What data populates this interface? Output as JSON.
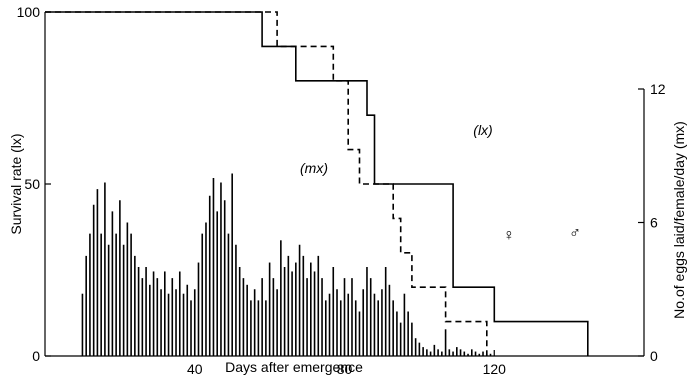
{
  "chart_data": {
    "type": "bar+line",
    "title": "",
    "xlabel": "Days after emergence",
    "ylabel_left": "Survival rate (lx)",
    "ylabel_right": "No.of eggs laid/female/day (mx)",
    "xlim": [
      0,
      160
    ],
    "xticks": [
      40,
      80,
      120
    ],
    "ylim_left": [
      0,
      100
    ],
    "yticks_left": [
      0,
      50,
      100
    ],
    "ylim_right": [
      0,
      12
    ],
    "yticks_right": [
      0,
      6,
      12
    ],
    "grid": false,
    "annotations": [
      "(mx)",
      "(lx)",
      "♀",
      "♂"
    ],
    "lines": [
      {
        "sex": "male",
        "style": "solid",
        "points": [
          [
            0,
            100
          ],
          [
            58,
            100
          ],
          [
            58,
            90
          ],
          [
            67,
            90
          ],
          [
            67,
            80
          ],
          [
            86,
            80
          ],
          [
            86,
            70
          ],
          [
            88,
            70
          ],
          [
            88,
            50
          ],
          [
            109,
            50
          ],
          [
            109,
            20
          ],
          [
            120,
            20
          ],
          [
            120,
            10
          ],
          [
            145,
            10
          ],
          [
            145,
            0
          ]
        ]
      },
      {
        "sex": "female",
        "style": "dashed",
        "points": [
          [
            0,
            100
          ],
          [
            62,
            100
          ],
          [
            62,
            90
          ],
          [
            77,
            90
          ],
          [
            77,
            80
          ],
          [
            81,
            80
          ],
          [
            81,
            60
          ],
          [
            84,
            60
          ],
          [
            84,
            50
          ],
          [
            93,
            50
          ],
          [
            93,
            40
          ],
          [
            95,
            40
          ],
          [
            95,
            30
          ],
          [
            98,
            30
          ],
          [
            98,
            20
          ],
          [
            107,
            20
          ],
          [
            107,
            10
          ],
          [
            118,
            10
          ],
          [
            118,
            0
          ]
        ]
      }
    ],
    "bars_mx": {
      "x": [
        10,
        11,
        12,
        13,
        14,
        15,
        16,
        17,
        18,
        19,
        20,
        21,
        22,
        23,
        24,
        25,
        26,
        27,
        28,
        29,
        30,
        31,
        32,
        33,
        34,
        35,
        36,
        37,
        38,
        39,
        40,
        41,
        42,
        43,
        44,
        45,
        46,
        47,
        48,
        49,
        50,
        51,
        52,
        53,
        54,
        55,
        56,
        57,
        58,
        59,
        60,
        61,
        62,
        63,
        64,
        65,
        66,
        67,
        68,
        69,
        70,
        71,
        72,
        73,
        74,
        75,
        76,
        77,
        78,
        79,
        80,
        81,
        82,
        83,
        84,
        85,
        86,
        87,
        88,
        89,
        90,
        91,
        92,
        93,
        94,
        95,
        96,
        97,
        98,
        99,
        100,
        101,
        102,
        103,
        104,
        105,
        106,
        107,
        108,
        109,
        110,
        111,
        112,
        113,
        114,
        115,
        116,
        117,
        118,
        119
      ],
      "values": [
        2.8,
        4.5,
        5.5,
        6.8,
        7.5,
        5.5,
        7.8,
        5.0,
        6.5,
        5.5,
        7.0,
        5.0,
        6.0,
        5.5,
        4.5,
        4.0,
        3.5,
        4.0,
        3.2,
        3.8,
        3.5,
        3.0,
        3.8,
        2.8,
        3.5,
        3.0,
        3.8,
        2.8,
        3.2,
        2.5,
        3.0,
        4.2,
        5.5,
        6.0,
        7.2,
        8.0,
        6.5,
        7.8,
        7.0,
        5.5,
        8.2,
        5.0,
        4.0,
        3.5,
        3.2,
        2.5,
        3.0,
        2.5,
        3.5,
        2.5,
        4.2,
        3.5,
        3.0,
        5.2,
        4.0,
        4.5,
        3.8,
        4.2,
        5.0,
        4.5,
        3.5,
        4.2,
        3.8,
        4.5,
        3.5,
        2.5,
        2.8,
        4.0,
        3.0,
        2.5,
        3.5,
        2.8,
        3.5,
        2.5,
        2.0,
        3.0,
        4.0,
        3.5,
        2.8,
        2.5,
        3.0,
        4.0,
        3.2,
        2.5,
        2.0,
        1.5,
        2.8,
        2.0,
        1.5,
        0.8,
        0.6,
        0.4,
        0.3,
        0.2,
        0.5,
        0.3,
        0.2,
        1.2,
        0.3,
        0.2,
        0.4,
        0.3,
        0.2,
        0.1,
        0.3,
        0.2,
        0.1,
        0.2,
        0.1,
        0.1
      ]
    }
  }
}
